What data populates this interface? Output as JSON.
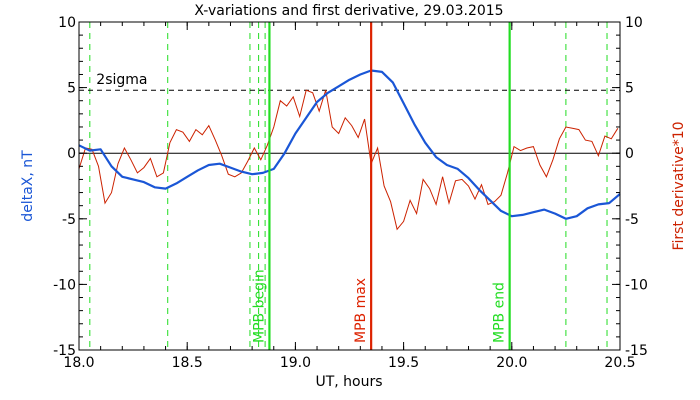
{
  "chart_data": {
    "type": "line",
    "title": "X-variations and first derivative, 29.03.2015",
    "xlabel": "UT, hours",
    "ylabel_left": "deltaX, nT",
    "ylabel_right": "First derivative*10",
    "xlim": [
      18.0,
      20.5
    ],
    "ylim": [
      -15,
      10
    ],
    "x_ticks": [
      18.0,
      18.5,
      19.0,
      19.5,
      20.0,
      20.5
    ],
    "x_tick_labels": [
      "18.0",
      "18.5",
      "19.0",
      "19.5",
      "20.0",
      "20.5"
    ],
    "y_ticks": [
      -15,
      -10,
      -5,
      0,
      5,
      10
    ],
    "y_tick_labels": [
      "-15",
      "-10",
      "-5",
      "0",
      "5",
      "10"
    ],
    "colors": {
      "deltaX": "#1a56d6",
      "derivative": "#cc2200",
      "mpb_edges": "#22dd22",
      "mpb_max": "#dd2200",
      "axes": "#000000"
    },
    "threshold": {
      "label": "2sigma",
      "y": 4.8
    },
    "zero_line": 0,
    "markers": [
      {
        "label": "MPB begin",
        "x": 18.88,
        "color": "#22dd22"
      },
      {
        "label": "MPB max",
        "x": 19.35,
        "color": "#dd2200"
      },
      {
        "label": "MPB end",
        "x": 19.99,
        "color": "#22dd22"
      }
    ],
    "dashed_vlines": [
      18.05,
      18.41,
      18.79,
      18.83,
      18.86,
      20.25,
      20.44
    ],
    "series": [
      {
        "name": "deltaX",
        "axis": "left",
        "x": [
          18.0,
          18.05,
          18.1,
          18.15,
          18.2,
          18.25,
          18.3,
          18.35,
          18.4,
          18.45,
          18.5,
          18.55,
          18.6,
          18.65,
          18.7,
          18.75,
          18.8,
          18.85,
          18.9,
          18.95,
          19.0,
          19.05,
          19.1,
          19.15,
          19.2,
          19.25,
          19.3,
          19.35,
          19.4,
          19.45,
          19.5,
          19.55,
          19.6,
          19.65,
          19.7,
          19.75,
          19.8,
          19.85,
          19.9,
          19.95,
          20.0,
          20.05,
          20.1,
          20.15,
          20.2,
          20.25,
          20.3,
          20.35,
          20.4,
          20.45,
          20.5
        ],
        "y": [
          0.6,
          0.2,
          0.3,
          -1.0,
          -1.8,
          -2.0,
          -2.2,
          -2.6,
          -2.7,
          -2.3,
          -1.8,
          -1.3,
          -0.9,
          -0.8,
          -1.1,
          -1.4,
          -1.6,
          -1.5,
          -1.2,
          0.0,
          1.5,
          2.7,
          3.9,
          4.6,
          5.1,
          5.6,
          6.0,
          6.3,
          6.2,
          5.4,
          3.8,
          2.2,
          0.8,
          -0.3,
          -0.9,
          -1.2,
          -1.9,
          -2.8,
          -3.6,
          -4.4,
          -4.8,
          -4.7,
          -4.5,
          -4.3,
          -4.6,
          -5.0,
          -4.8,
          -4.2,
          -3.9,
          -3.8,
          -3.1
        ]
      },
      {
        "name": "First derivative*10",
        "axis": "right",
        "x": [
          18.0,
          18.03,
          18.06,
          18.09,
          18.12,
          18.15,
          18.18,
          18.21,
          18.24,
          18.27,
          18.3,
          18.33,
          18.36,
          18.39,
          18.42,
          18.45,
          18.48,
          18.51,
          18.54,
          18.57,
          18.6,
          18.63,
          18.66,
          18.69,
          18.72,
          18.75,
          18.78,
          18.81,
          18.84,
          18.87,
          18.9,
          18.93,
          18.96,
          18.99,
          19.02,
          19.05,
          19.08,
          19.11,
          19.14,
          19.17,
          19.2,
          19.23,
          19.26,
          19.29,
          19.32,
          19.35,
          19.38,
          19.41,
          19.44,
          19.47,
          19.5,
          19.53,
          19.56,
          19.59,
          19.62,
          19.65,
          19.68,
          19.71,
          19.74,
          19.77,
          19.8,
          19.83,
          19.86,
          19.89,
          19.92,
          19.95,
          19.98,
          20.01,
          20.04,
          20.07,
          20.1,
          20.13,
          20.16,
          20.19,
          20.22,
          20.25,
          20.28,
          20.31,
          20.34,
          20.37,
          20.4,
          20.43,
          20.46,
          20.49
        ],
        "y": [
          -1.2,
          0.4,
          0.3,
          -1.0,
          -3.8,
          -3.0,
          -0.8,
          0.4,
          -0.5,
          -1.5,
          -1.1,
          -0.4,
          -1.8,
          -1.5,
          0.8,
          1.8,
          1.6,
          0.9,
          1.8,
          1.4,
          2.1,
          1.0,
          -0.2,
          -1.6,
          -1.8,
          -1.5,
          -0.6,
          0.4,
          -0.5,
          0.6,
          2.0,
          4.0,
          3.6,
          4.3,
          2.8,
          4.8,
          4.6,
          3.2,
          4.8,
          2.0,
          1.5,
          2.7,
          2.1,
          1.2,
          2.6,
          -0.8,
          0.4,
          -2.5,
          -3.7,
          -5.8,
          -5.2,
          -3.6,
          -4.6,
          -2.0,
          -2.7,
          -3.9,
          -1.8,
          -3.8,
          -2.1,
          -2.0,
          -2.5,
          -3.5,
          -2.4,
          -3.9,
          -3.7,
          -3.2,
          -1.5,
          0.5,
          0.2,
          0.4,
          0.5,
          -0.9,
          -1.8,
          -0.5,
          1.1,
          2.0,
          1.9,
          1.8,
          1.0,
          0.9,
          -0.2,
          1.3,
          1.1,
          1.9
        ]
      }
    ]
  }
}
